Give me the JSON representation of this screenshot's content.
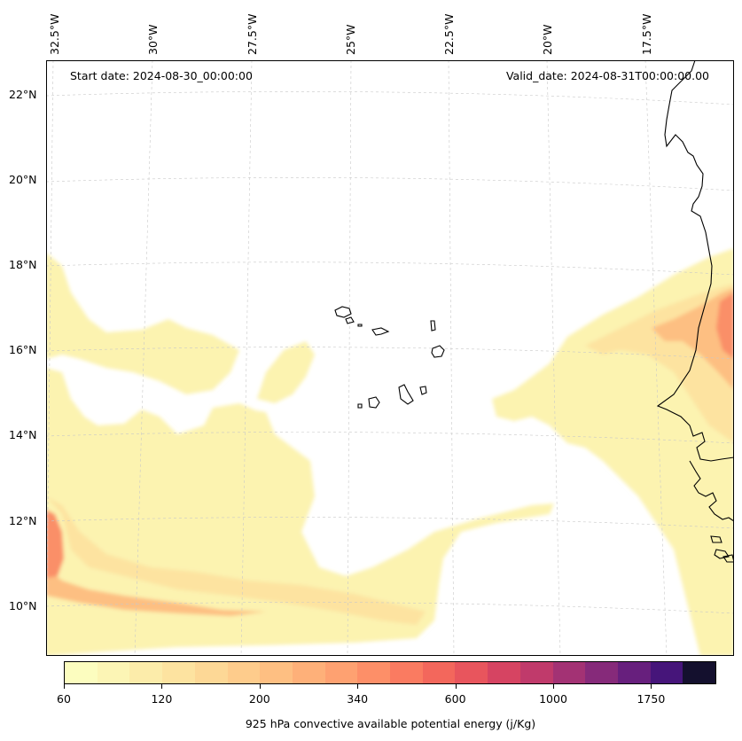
{
  "header": {
    "start_date": "Start date: 2024-08-30_00:00:00",
    "valid_date": "Valid_date: 2024-08-31T00:00:00.00"
  },
  "axes": {
    "longitude_labels": [
      "32.5°W",
      "30°W",
      "27.5°W",
      "25°W",
      "22.5°W",
      "20°W",
      "17.5°W"
    ],
    "latitude_labels": [
      "22°N",
      "20°N",
      "18°N",
      "16°N",
      "14°N",
      "12°N",
      "10°N"
    ]
  },
  "colorbar": {
    "title": "925 hPa convective available potential energy (j/Kg)",
    "tick_labels": [
      "60",
      "120",
      "200",
      "340",
      "600",
      "1000",
      "1750"
    ],
    "colors": [
      "#fcfdbf",
      "#fcf5b5",
      "#fcecaa",
      "#fde3a0",
      "#fdd896",
      "#fecc8c",
      "#febf82",
      "#feb079",
      "#fea171",
      "#fd8f68",
      "#fa7b61",
      "#f3675c",
      "#e8555d",
      "#d64462",
      "#c03a6b",
      "#a33274",
      "#862a7a",
      "#671f7d",
      "#46157a",
      "#14102e"
    ]
  },
  "map": {
    "region": "Eastern tropical Atlantic, Cape Verde Islands and West African coast",
    "field_colors": {
      "light": "#fcf3b0",
      "mid": "#fde3a0",
      "orange": "#fdbf82",
      "deep": "#fa8f68"
    }
  }
}
